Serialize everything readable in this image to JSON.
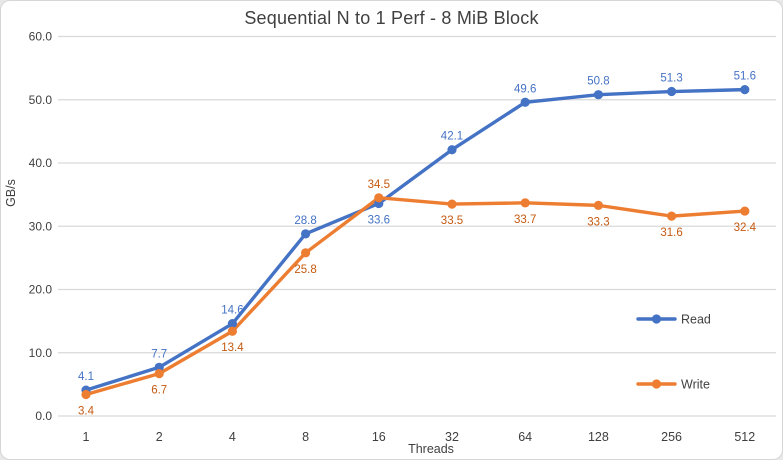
{
  "window": {
    "background": "#ffffff",
    "border_color": "#d6d6d6"
  },
  "chart_data": {
    "type": "line",
    "title": "Sequential N to 1 Perf - 8 MiB Block",
    "xlabel": "Threads",
    "ylabel": "GB/s",
    "categories": [
      "1",
      "2",
      "4",
      "8",
      "16",
      "32",
      "64",
      "128",
      "256",
      "512"
    ],
    "ylim": [
      0,
      60
    ],
    "ytick_step": 10,
    "ytick_labels": [
      "0.0",
      "10.0",
      "20.0",
      "30.0",
      "40.0",
      "50.0",
      "60.0"
    ],
    "grid": true,
    "legend_position": "right-inside",
    "series": [
      {
        "name": "Read",
        "color": "#4472C4",
        "label_color": "#4472C4",
        "values": [
          4.1,
          7.7,
          14.6,
          28.8,
          33.6,
          42.1,
          49.6,
          50.8,
          51.3,
          51.6
        ],
        "label_sides": [
          "above",
          "above",
          "above",
          "above",
          "below",
          "above",
          "above",
          "above",
          "above",
          "above"
        ]
      },
      {
        "name": "Write",
        "color": "#ED7D31",
        "label_color": "#C55A11",
        "values": [
          3.4,
          6.7,
          13.4,
          25.8,
          34.5,
          33.5,
          33.7,
          33.3,
          31.6,
          32.4
        ],
        "label_sides": [
          "below",
          "below",
          "below",
          "below",
          "above",
          "below",
          "below",
          "below",
          "below",
          "below"
        ]
      }
    ],
    "styles": {
      "gridline_color": "#d9d9d9",
      "axis_text_color": "#3f3f3f",
      "title_color": "#404040",
      "legend_text_color": "#404040"
    }
  }
}
